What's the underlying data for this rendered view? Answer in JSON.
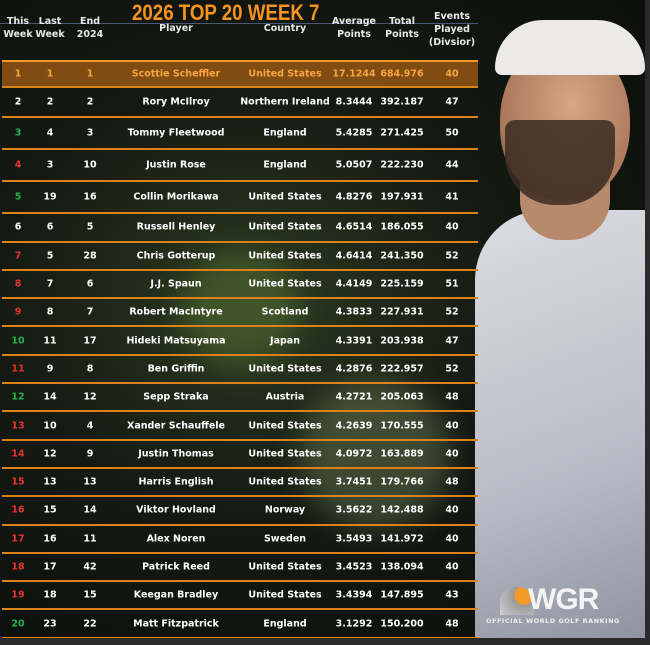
{
  "title": "2026 TOP 20 WEEK 7",
  "headers": {
    "this_week": "This\nWeek",
    "last_week": "Last\nWeek",
    "end_2024": "End\n2024",
    "player": "Player",
    "country": "Country",
    "average": "Average\nPoints",
    "total": "Total\nPoints",
    "events": "Events\nPlayed\n(Divsior)"
  },
  "colors": {
    "accent": "#f7931e",
    "up": "#22b14c",
    "down": "#e8322e",
    "highlight": "#d9831a"
  },
  "rows": [
    {
      "rank": "1",
      "last": "1",
      "end": "1",
      "player": "Scottie Scheffler",
      "country": "United States",
      "avg": "17.1244",
      "total": "684.976",
      "events": "40",
      "trend": "highlight"
    },
    {
      "rank": "2",
      "last": "2",
      "end": "2",
      "player": "Rory McIlroy",
      "country": "Northern Ireland",
      "avg": "8.3444",
      "total": "392.187",
      "events": "47",
      "trend": "same"
    },
    {
      "rank": "3",
      "last": "4",
      "end": "3",
      "player": "Tommy Fleetwood",
      "country": "England",
      "avg": "5.4285",
      "total": "271.425",
      "events": "50",
      "trend": "up"
    },
    {
      "rank": "4",
      "last": "3",
      "end": "10",
      "player": "Justin Rose",
      "country": "England",
      "avg": "5.0507",
      "total": "222.230",
      "events": "44",
      "trend": "down"
    },
    {
      "rank": "5",
      "last": "19",
      "end": "16",
      "player": "Collin Morikawa",
      "country": "United States",
      "avg": "4.8276",
      "total": "197.931",
      "events": "41",
      "trend": "up"
    },
    {
      "rank": "6",
      "last": "6",
      "end": "5",
      "player": "Russell Henley",
      "country": "United States",
      "avg": "4.6514",
      "total": "186.055",
      "events": "40",
      "trend": "same"
    },
    {
      "rank": "7",
      "last": "5",
      "end": "28",
      "player": "Chris Gotterup",
      "country": "United States",
      "avg": "4.6414",
      "total": "241.350",
      "events": "52",
      "trend": "down"
    },
    {
      "rank": "8",
      "last": "7",
      "end": "6",
      "player": "J.J. Spaun",
      "country": "United States",
      "avg": "4.4149",
      "total": "225.159",
      "events": "51",
      "trend": "down"
    },
    {
      "rank": "9",
      "last": "8",
      "end": "7",
      "player": "Robert MacIntyre",
      "country": "Scotland",
      "avg": "4.3833",
      "total": "227.931",
      "events": "52",
      "trend": "down"
    },
    {
      "rank": "10",
      "last": "11",
      "end": "17",
      "player": "Hideki Matsuyama",
      "country": "Japan",
      "avg": "4.3391",
      "total": "203.938",
      "events": "47",
      "trend": "up"
    },
    {
      "rank": "11",
      "last": "9",
      "end": "8",
      "player": "Ben Griffin",
      "country": "United States",
      "avg": "4.2876",
      "total": "222.957",
      "events": "52",
      "trend": "down"
    },
    {
      "rank": "12",
      "last": "14",
      "end": "12",
      "player": "Sepp Straka",
      "country": "Austria",
      "avg": "4.2721",
      "total": "205.063",
      "events": "48",
      "trend": "up"
    },
    {
      "rank": "13",
      "last": "10",
      "end": "4",
      "player": "Xander Schauffele",
      "country": "United States",
      "avg": "4.2639",
      "total": "170.555",
      "events": "40",
      "trend": "down"
    },
    {
      "rank": "14",
      "last": "12",
      "end": "9",
      "player": "Justin Thomas",
      "country": "United States",
      "avg": "4.0972",
      "total": "163.889",
      "events": "40",
      "trend": "down"
    },
    {
      "rank": "15",
      "last": "13",
      "end": "13",
      "player": "Harris English",
      "country": "United States",
      "avg": "3.7451",
      "total": "179.766",
      "events": "48",
      "trend": "down"
    },
    {
      "rank": "16",
      "last": "15",
      "end": "14",
      "player": "Viktor Hovland",
      "country": "Norway",
      "avg": "3.5622",
      "total": "142.488",
      "events": "40",
      "trend": "down"
    },
    {
      "rank": "17",
      "last": "16",
      "end": "11",
      "player": "Alex Noren",
      "country": "Sweden",
      "avg": "3.5493",
      "total": "141.972",
      "events": "40",
      "trend": "down"
    },
    {
      "rank": "18",
      "last": "17",
      "end": "42",
      "player": "Patrick Reed",
      "country": "United States",
      "avg": "3.4523",
      "total": "138.094",
      "events": "40",
      "trend": "down"
    },
    {
      "rank": "19",
      "last": "18",
      "end": "15",
      "player": "Keegan Bradley",
      "country": "United States",
      "avg": "3.4394",
      "total": "147.895",
      "events": "43",
      "trend": "down"
    },
    {
      "rank": "20",
      "last": "23",
      "end": "22",
      "player": "Matt Fitzpatrick",
      "country": "England",
      "avg": "3.1292",
      "total": "150.200",
      "events": "48",
      "trend": "up"
    }
  ],
  "logo": {
    "mark": "WGR",
    "tagline": "OFFICIAL WORLD GOLF RANKING"
  }
}
